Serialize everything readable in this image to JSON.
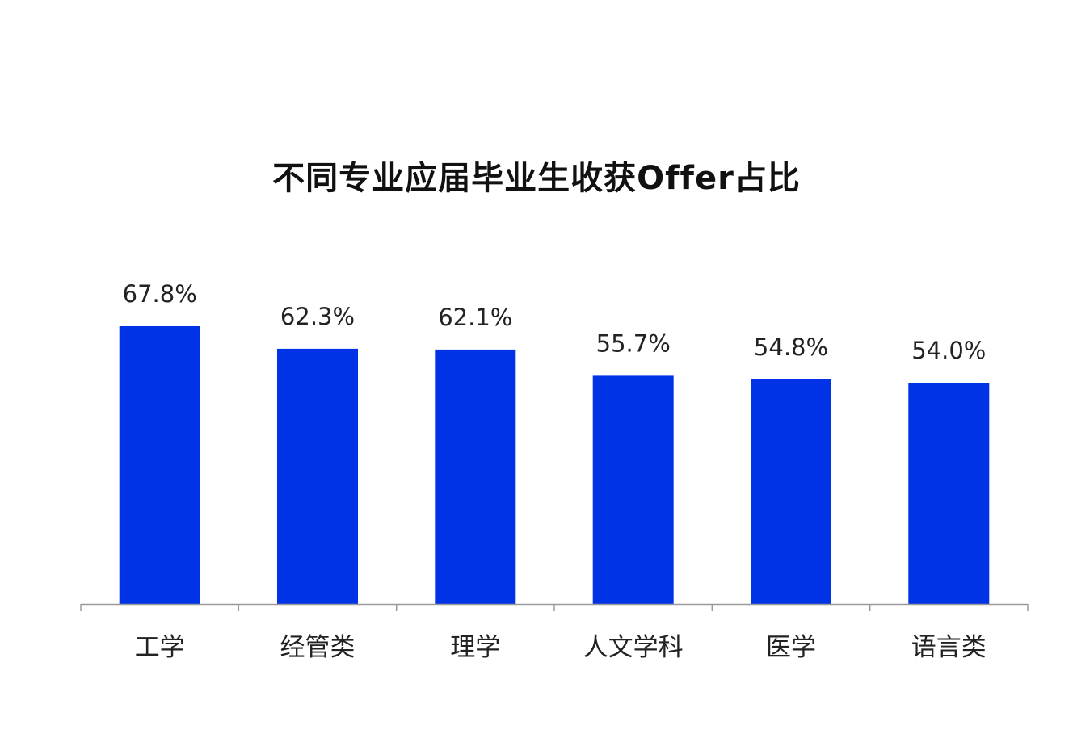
{
  "chart_data": {
    "type": "bar",
    "title": "不同专业应届毕业生收获Offer占比",
    "categories": [
      "工学",
      "经管类",
      "理学",
      "人文学科",
      "医学",
      "语言类"
    ],
    "values": [
      67.8,
      62.3,
      62.1,
      55.7,
      54.8,
      54.0
    ],
    "data_labels": [
      "67.8%",
      "62.3%",
      "62.1%",
      "55.7%",
      "54.8%",
      "54.0%"
    ],
    "unit": "%",
    "xlabel": "",
    "ylabel": "",
    "ylim": [
      0,
      67.8
    ],
    "grid": false,
    "legend": "none",
    "colors": {
      "bar": "#0033e6",
      "axis": "#9a9a9a",
      "text": "#222222",
      "title": "#111111"
    }
  }
}
